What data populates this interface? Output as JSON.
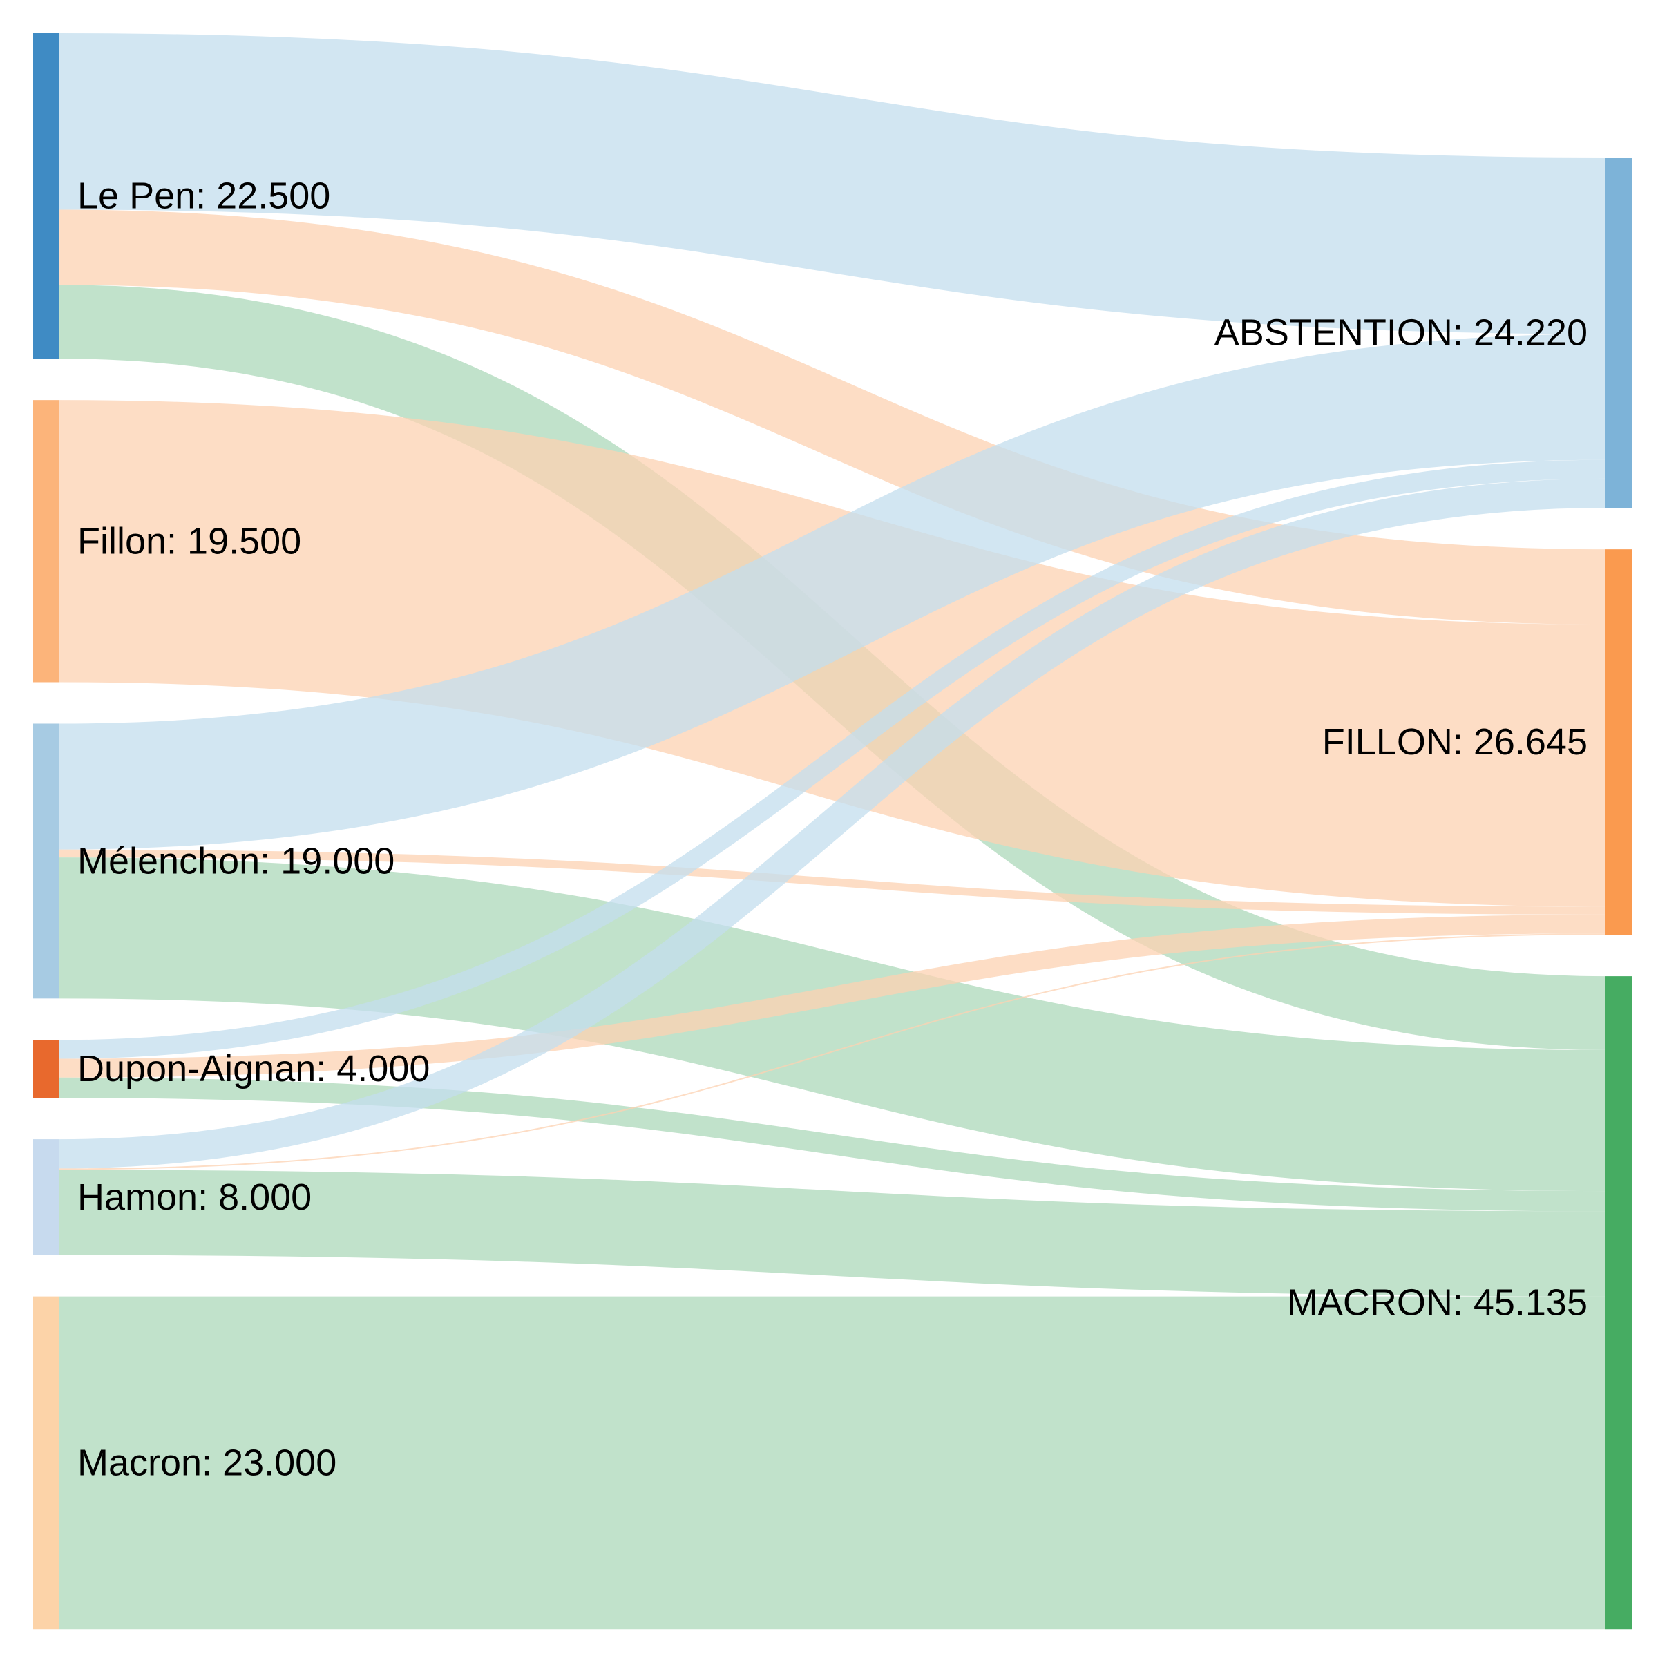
{
  "sankey": {
    "sources": [
      {
        "id": "lepen",
        "name": "Le Pen",
        "value": 22.5,
        "value_label": "22.500",
        "color": "#3f8bc4"
      },
      {
        "id": "fillon",
        "name": "Fillon",
        "value": 19.5,
        "value_label": "19.500",
        "color": "#fcb47a"
      },
      {
        "id": "melenchon",
        "name": "Mélenchon",
        "value": 19.0,
        "value_label": "19.000",
        "color": "#a7cbe3"
      },
      {
        "id": "dupont",
        "name": "Dupon-Aignan",
        "value": 4.0,
        "value_label": "4.000",
        "color": "#e8692d"
      },
      {
        "id": "hamon",
        "name": "Hamon",
        "value": 8.0,
        "value_label": "8.000",
        "color": "#c7daee"
      },
      {
        "id": "macron",
        "name": "Macron",
        "value": 23.0,
        "value_label": "23.000",
        "color": "#fcd3a8"
      }
    ],
    "targets": [
      {
        "id": "ABSTENTION",
        "name": "ABSTENTION",
        "value": 24.22,
        "value_label": "24.220",
        "color": "#7db3d8",
        "link_color": "#c3ddee"
      },
      {
        "id": "FILLON",
        "name": "FILLON",
        "value": 26.645,
        "value_label": "26.645",
        "color": "#fa9a4f",
        "link_color": "#fcd1b1"
      },
      {
        "id": "MACRON",
        "name": "MACRON",
        "value": 45.135,
        "value_label": "45.135",
        "color": "#46ac62",
        "link_color": "#acd8ba"
      }
    ],
    "links": [
      {
        "source": "lepen",
        "target": "ABSTENTION",
        "value": 12.2
      },
      {
        "source": "lepen",
        "target": "FILLON",
        "value": 5.2
      },
      {
        "source": "lepen",
        "target": "MACRON",
        "value": 5.1
      },
      {
        "source": "fillon",
        "target": "FILLON",
        "value": 19.5
      },
      {
        "source": "melenchon",
        "target": "ABSTENTION",
        "value": 8.7
      },
      {
        "source": "melenchon",
        "target": "FILLON",
        "value": 0.55
      },
      {
        "source": "melenchon",
        "target": "MACRON",
        "value": 9.75
      },
      {
        "source": "dupont",
        "target": "ABSTENTION",
        "value": 1.3
      },
      {
        "source": "dupont",
        "target": "FILLON",
        "value": 1.3
      },
      {
        "source": "dupont",
        "target": "MACRON",
        "value": 1.4
      },
      {
        "source": "hamon",
        "target": "ABSTENTION",
        "value": 2.02
      },
      {
        "source": "hamon",
        "target": "FILLON",
        "value": 0.095
      },
      {
        "source": "hamon",
        "target": "MACRON",
        "value": 5.885
      },
      {
        "source": "macron",
        "target": "MACRON",
        "value": 23.0
      }
    ]
  }
}
